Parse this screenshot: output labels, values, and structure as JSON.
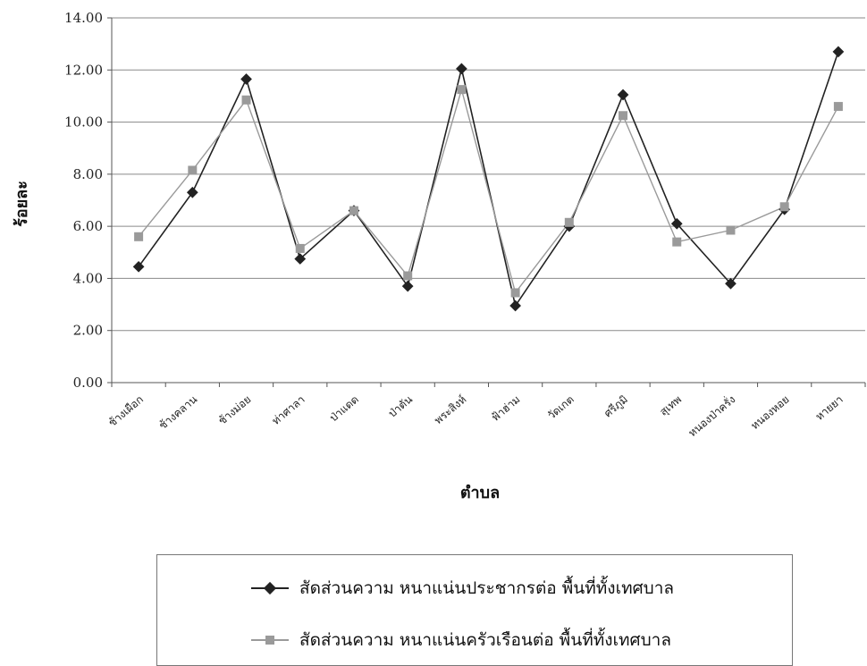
{
  "chart_data": {
    "type": "line",
    "xlabel": "ตำบล",
    "ylabel": "ร้อยละ",
    "ylim": [
      0,
      14
    ],
    "yticks": [
      "0.00",
      "2.00",
      "4.00",
      "6.00",
      "8.00",
      "10.00",
      "12.00",
      "14.00"
    ],
    "grid": "horizontal",
    "legend_position": "bottom",
    "categories": [
      "ช้างเผือก",
      "ช้างคลาน",
      "ช้างม่อย",
      "ท่าศาลา",
      "ป่าแดด",
      "ป่าตัน",
      "พระสิงห์",
      "ฟ้าฮ่าม",
      "วัดเกต",
      "ศรีภูมิ",
      "สุเทพ",
      "หนองป่าครั่ง",
      "หนองหอย",
      "หายยา"
    ],
    "series": [
      {
        "name": "สัดส่วนความ หนาแน่นประชากรต่อ พื้นที่ทั้งเทศบาล",
        "color": "#222222",
        "marker": "diamond",
        "values": [
          4.45,
          7.3,
          11.65,
          4.75,
          6.6,
          3.7,
          12.05,
          2.95,
          6.0,
          11.05,
          6.1,
          3.8,
          6.65,
          12.7
        ]
      },
      {
        "name": "สัดส่วนความ หนาแน่นครัวเรือนต่อ พื้นที่ทั้งเทศบาล",
        "color": "#9a9a9a",
        "marker": "square",
        "values": [
          5.6,
          8.15,
          10.85,
          5.15,
          6.6,
          4.1,
          11.25,
          3.45,
          6.15,
          10.25,
          5.4,
          5.85,
          6.75,
          10.6
        ]
      }
    ]
  }
}
